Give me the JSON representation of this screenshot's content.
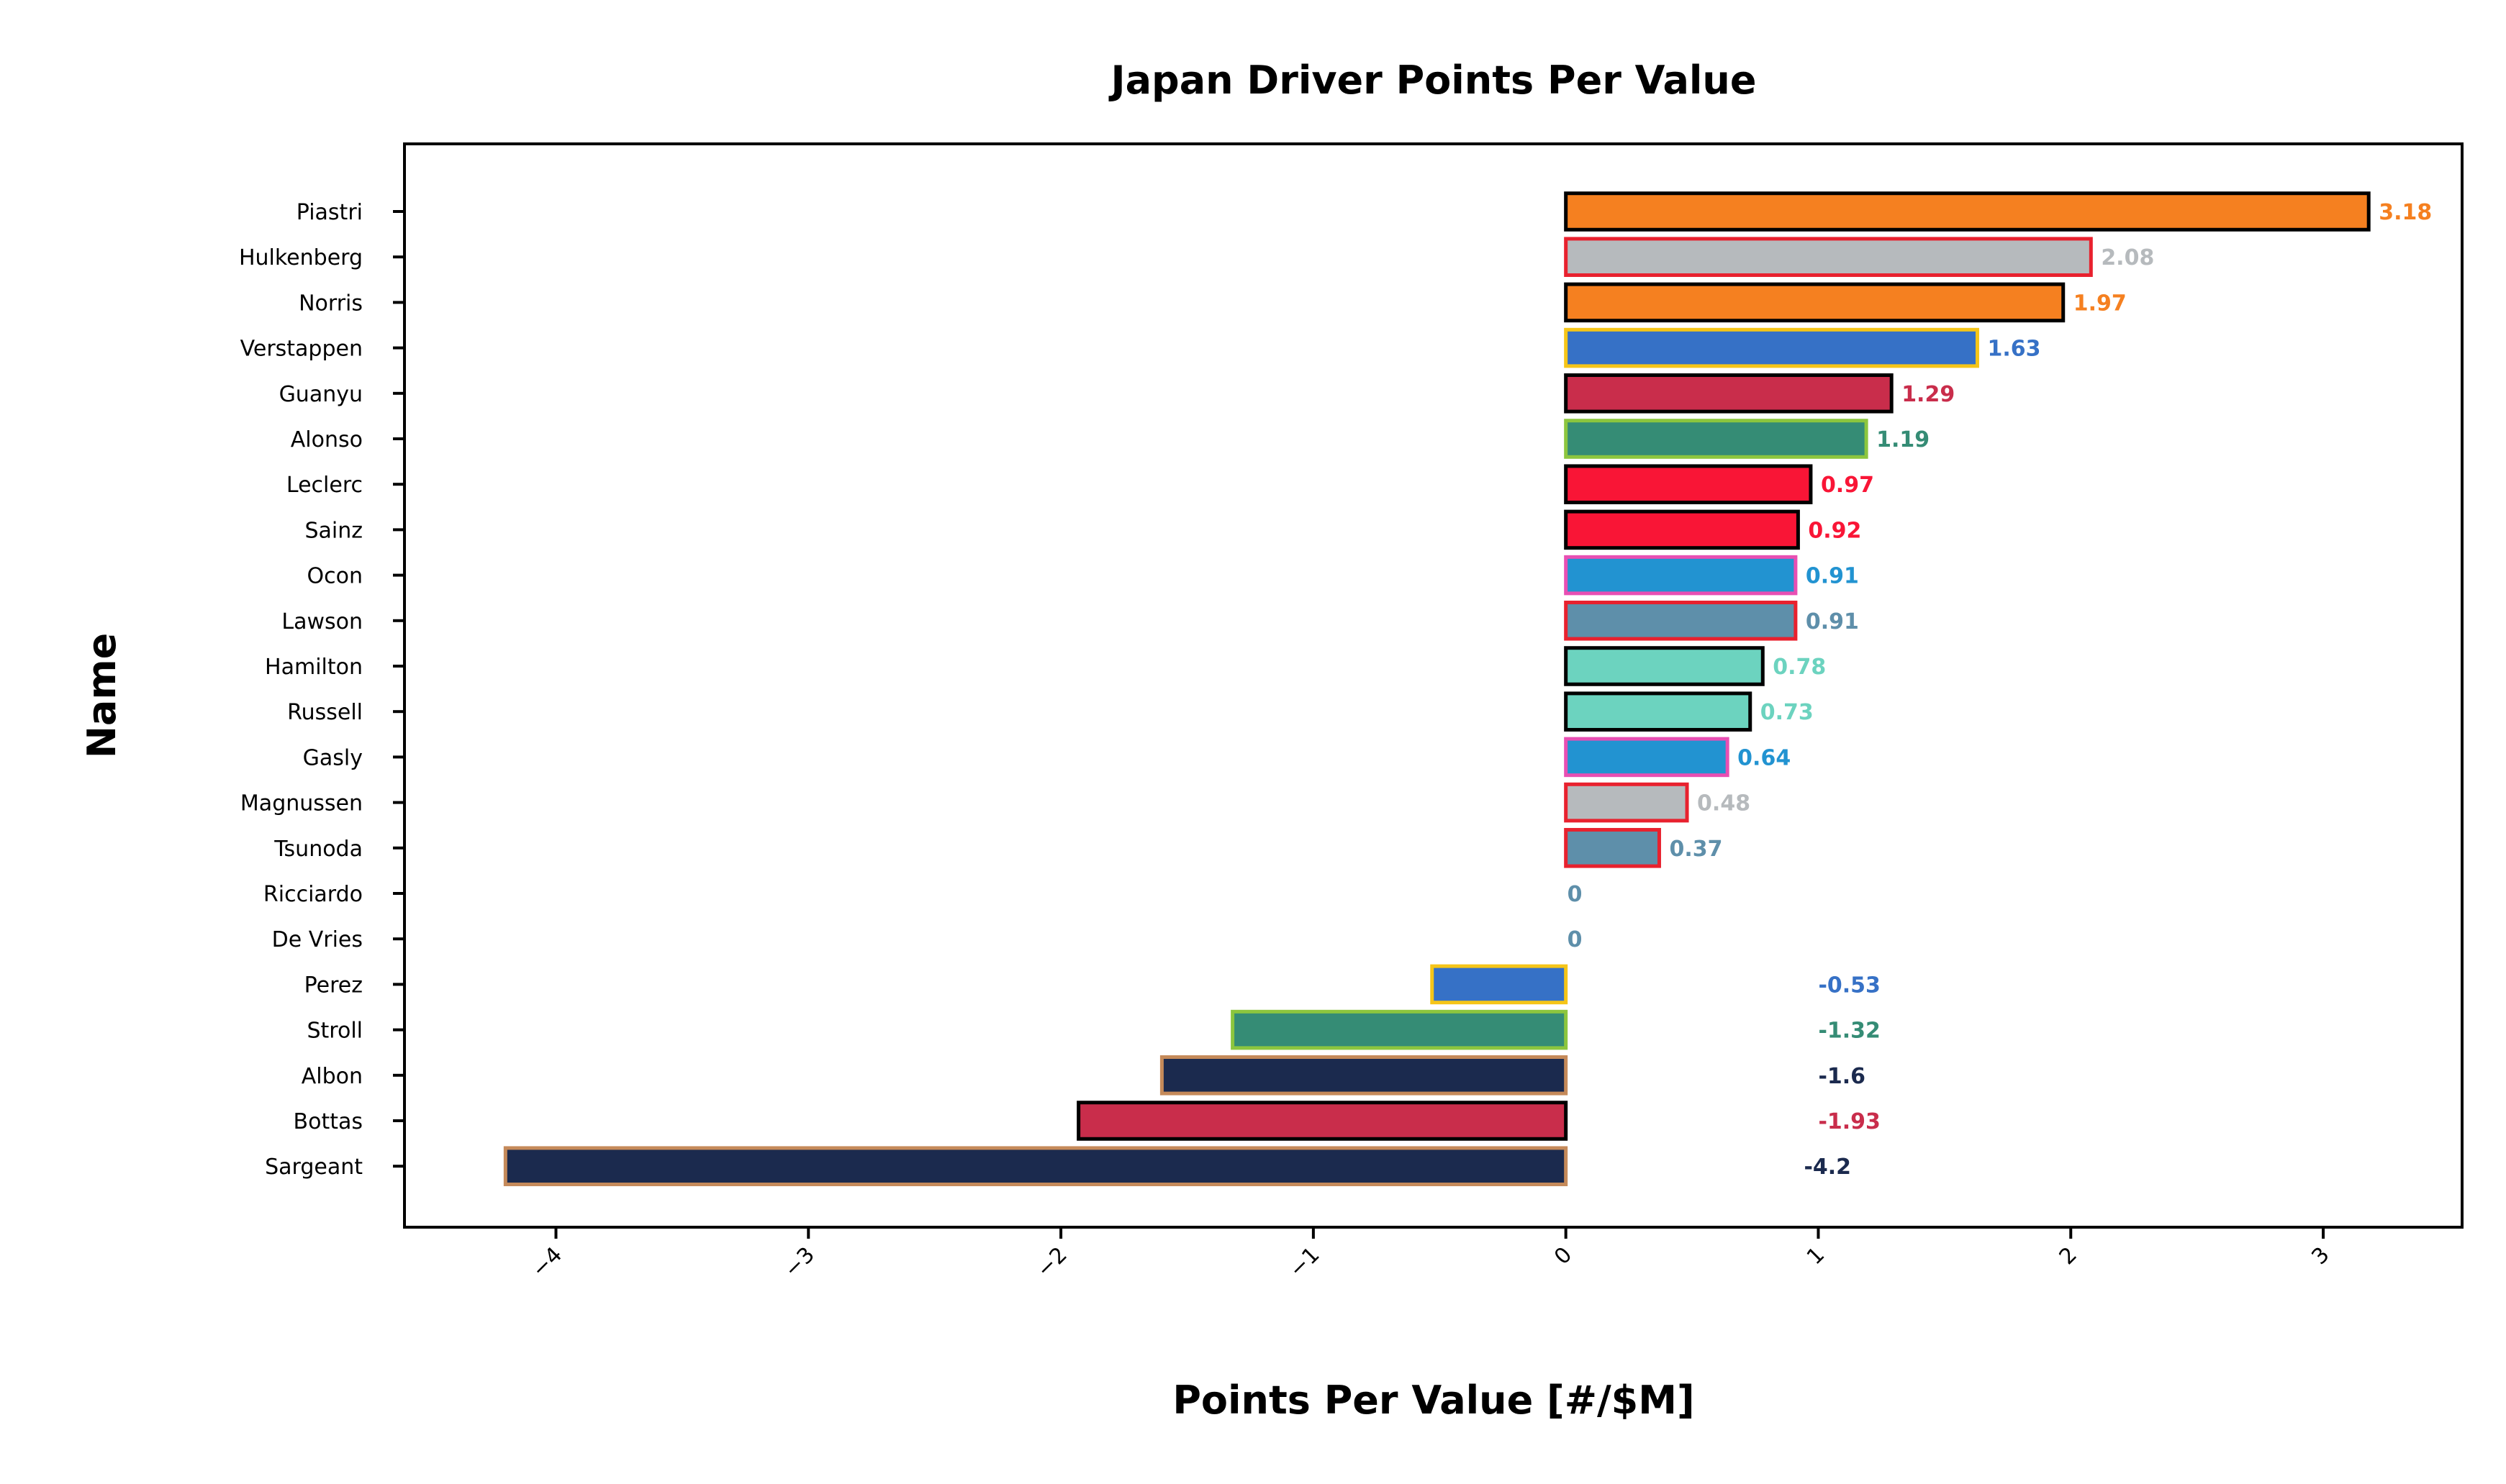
{
  "chart_data": {
    "type": "bar",
    "orientation": "horizontal",
    "title": "Japan Driver Points Per Value",
    "xlabel": "Points Per Value [#/$M]",
    "ylabel": "Name",
    "xlim": [
      -4.6,
      3.55
    ],
    "xticks": [
      -4,
      -3,
      -2,
      -1,
      0,
      1,
      2,
      3
    ],
    "xtick_labels": [
      "−4",
      "−3",
      "−2",
      "−1",
      "0",
      "1",
      "2",
      "3"
    ],
    "grid": false,
    "categories": [
      "Piastri",
      "Hulkenberg",
      "Norris",
      "Verstappen",
      "Guanyu",
      "Alonso",
      "Leclerc",
      "Sainz",
      "Ocon",
      "Lawson",
      "Hamilton",
      "Russell",
      "Gasly",
      "Magnussen",
      "Tsunoda",
      "Ricciardo",
      "De Vries",
      "Perez",
      "Stroll",
      "Albon",
      "Bottas",
      "Sargeant"
    ],
    "values": [
      3.18,
      2.08,
      1.97,
      1.63,
      1.29,
      1.19,
      0.97,
      0.92,
      0.91,
      0.91,
      0.78,
      0.73,
      0.64,
      0.48,
      0.37,
      0,
      0,
      -0.53,
      -1.32,
      -1.6,
      -1.93,
      -4.2
    ],
    "value_labels": [
      "3.18",
      "2.08",
      "1.97",
      "1.63",
      "1.29",
      "1.19",
      "0.97",
      "0.92",
      "0.91",
      "0.91",
      "0.78",
      "0.73",
      "0.64",
      "0.48",
      "0.37",
      "0",
      "0",
      "-0.53",
      "-1.32",
      "-1.6",
      "-1.93",
      "-4.2"
    ],
    "fill_colors": [
      "#f58020",
      "#b6babd",
      "#f58020",
      "#3671c6",
      "#c92d4b",
      "#358c75",
      "#f91536",
      "#f91536",
      "#2293d1",
      "#5e8faa",
      "#6cd3bf",
      "#6cd3bf",
      "#2293d1",
      "#b6babd",
      "#5e8faa",
      "#5e8faa",
      "#5e8faa",
      "#3671c6",
      "#358c75",
      "#1b2a4e",
      "#c92d4b",
      "#1b2a4e"
    ],
    "edge_colors": [
      "#000000",
      "#e8212e",
      "#000000",
      "#f5c518",
      "#000000",
      "#8cc63e",
      "#000000",
      "#000000",
      "#e84fb3",
      "#e8212e",
      "#000000",
      "#000000",
      "#e84fb3",
      "#e8212e",
      "#e8212e",
      "#e8212e",
      "#e8212e",
      "#f5c518",
      "#8cc63e",
      "#c58a5a",
      "#000000",
      "#c58a5a"
    ],
    "label_colors": [
      "#f58020",
      "#b6babd",
      "#f58020",
      "#3671c6",
      "#c92d4b",
      "#358c75",
      "#f91536",
      "#f91536",
      "#2293d1",
      "#5e8faa",
      "#6cd3bf",
      "#6cd3bf",
      "#2293d1",
      "#b6babd",
      "#5e8faa",
      "#5e8faa",
      "#5e8faa",
      "#3671c6",
      "#358c75",
      "#1b2a4e",
      "#c92d4b",
      "#1b2a4e"
    ]
  }
}
